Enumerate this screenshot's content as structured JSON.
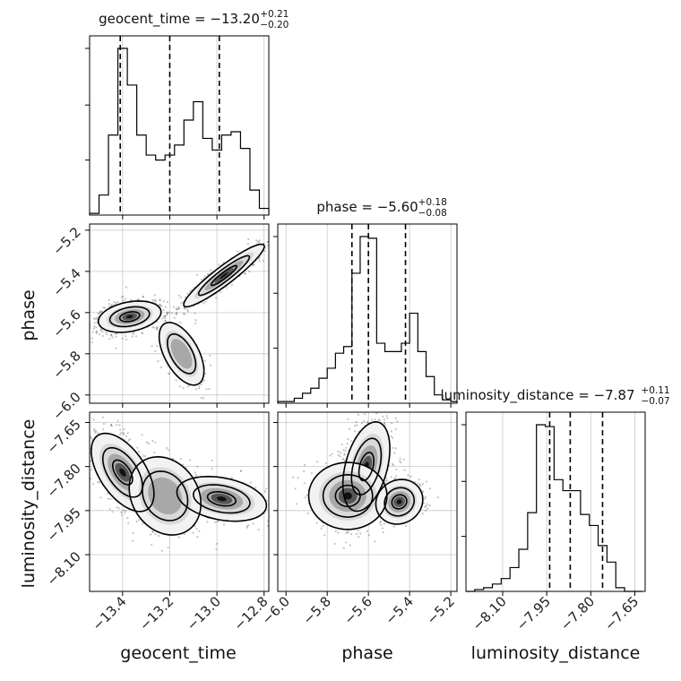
{
  "chart_data": {
    "type": "corner",
    "parameters": [
      "geocent_time",
      "phase",
      "luminosity_distance"
    ],
    "ranges": {
      "geocent_time": [
        -13.54,
        -12.78
      ],
      "phase": [
        -6.04,
        -5.17
      ],
      "luminosity_distance": [
        -8.225,
        -7.615
      ]
    },
    "axis_ticks": {
      "geocent_time": [
        {
          "value": -13.4,
          "label": "−13.4"
        },
        {
          "value": -13.2,
          "label": "−13.2"
        },
        {
          "value": -13.0,
          "label": "−13.0"
        },
        {
          "value": -12.8,
          "label": "−12.8"
        }
      ],
      "phase": [
        {
          "value": -6.0,
          "label": "−6.0"
        },
        {
          "value": -5.8,
          "label": "−5.8"
        },
        {
          "value": -5.6,
          "label": "−5.6"
        },
        {
          "value": -5.4,
          "label": "−5.4"
        },
        {
          "value": -5.2,
          "label": "−5.2"
        }
      ],
      "luminosity_distance": [
        {
          "value": -8.1,
          "label": "−8.10"
        },
        {
          "value": -7.95,
          "label": "−7.95"
        },
        {
          "value": -7.8,
          "label": "−7.80"
        },
        {
          "value": -7.65,
          "label": "−7.65"
        }
      ]
    },
    "diagonal_titles": [
      {
        "param": "geocent_time",
        "main": "geocent_time = −13.20",
        "plus": "+0.21",
        "minus": "−0.20"
      },
      {
        "param": "phase",
        "main": "phase = −5.60",
        "plus": "+0.18",
        "minus": "−0.08"
      },
      {
        "param": "luminosity_distance",
        "main": "luminosity_distance = −7.87",
        "plus": "+0.11",
        "minus": "−0.07"
      }
    ],
    "quantiles": {
      "geocent_time": [
        -13.41,
        -13.2,
        -12.99
      ],
      "phase": [
        -5.68,
        -5.6,
        -5.42
      ],
      "luminosity_distance": [
        -7.94,
        -7.87,
        -7.76
      ]
    },
    "histograms": {
      "geocent_time": {
        "edges": [
          -13.54,
          -13.5,
          -13.46,
          -13.42,
          -13.38,
          -13.34,
          -13.3,
          -13.26,
          -13.22,
          -13.18,
          -13.14,
          -13.1,
          -13.06,
          -13.02,
          -12.98,
          -12.94,
          -12.9,
          -12.86,
          -12.82,
          -12.78
        ],
        "counts": [
          0.01,
          0.12,
          0.48,
          1.0,
          0.78,
          0.48,
          0.36,
          0.33,
          0.36,
          0.42,
          0.57,
          0.68,
          0.46,
          0.39,
          0.48,
          0.5,
          0.4,
          0.15,
          0.04
        ]
      },
      "phase": {
        "edges": [
          -6.04,
          -6.0,
          -5.96,
          -5.92,
          -5.88,
          -5.84,
          -5.8,
          -5.76,
          -5.72,
          -5.68,
          -5.64,
          -5.6,
          -5.56,
          -5.52,
          -5.48,
          -5.44,
          -5.4,
          -5.36,
          -5.32,
          -5.28,
          -5.24,
          -5.2,
          -5.17
        ],
        "counts": [
          0.01,
          0.01,
          0.03,
          0.06,
          0.09,
          0.15,
          0.21,
          0.3,
          0.34,
          0.78,
          1.0,
          0.99,
          0.36,
          0.31,
          0.31,
          0.36,
          0.54,
          0.31,
          0.16,
          0.05,
          0.02,
          0.01
        ]
      },
      "luminosity_distance": {
        "edges": [
          -8.225,
          -8.195,
          -8.165,
          -8.135,
          -8.105,
          -8.075,
          -8.045,
          -8.015,
          -7.985,
          -7.955,
          -7.925,
          -7.895,
          -7.865,
          -7.835,
          -7.805,
          -7.775,
          -7.745,
          -7.715,
          -7.685,
          -7.655,
          -7.625
        ],
        "counts": [
          0.0,
          0.01,
          0.02,
          0.04,
          0.07,
          0.13,
          0.23,
          0.43,
          0.91,
          0.9,
          0.61,
          0.55,
          0.55,
          0.42,
          0.36,
          0.25,
          0.16,
          0.02,
          0.0,
          0.0
        ]
      }
    },
    "pair_panels": [
      {
        "x": "geocent_time",
        "y": "phase",
        "modes": [
          {
            "cx": -13.37,
            "cy": -5.62,
            "sx": 0.07,
            "sy": 0.04,
            "rho": 0.3,
            "weight": 0.55
          },
          {
            "cx": -12.97,
            "cy": -5.42,
            "sx": 0.09,
            "sy": 0.08,
            "rho": 0.93,
            "weight": 0.4
          },
          {
            "cx": -13.15,
            "cy": -5.8,
            "sx": 0.05,
            "sy": 0.08,
            "rho": -0.55,
            "weight": 0.18
          }
        ]
      },
      {
        "x": "geocent_time",
        "y": "luminosity_distance",
        "modes": [
          {
            "cx": -13.4,
            "cy": -7.82,
            "sx": 0.07,
            "sy": 0.07,
            "rho": -0.55,
            "weight": 0.55
          },
          {
            "cx": -12.98,
            "cy": -7.91,
            "sx": 0.1,
            "sy": 0.04,
            "rho": -0.3,
            "weight": 0.4
          },
          {
            "cx": -13.22,
            "cy": -7.9,
            "sx": 0.08,
            "sy": 0.07,
            "rho": -0.2,
            "weight": 0.25
          }
        ]
      },
      {
        "x": "phase",
        "y": "luminosity_distance",
        "modes": [
          {
            "cx": -5.61,
            "cy": -7.8,
            "sx": 0.06,
            "sy": 0.08,
            "rho": 0.4,
            "weight": 0.6
          },
          {
            "cx": -5.45,
            "cy": -7.92,
            "sx": 0.06,
            "sy": 0.04,
            "rho": 0.1,
            "weight": 0.35
          },
          {
            "cx": -5.7,
            "cy": -7.9,
            "sx": 0.1,
            "sy": 0.06,
            "rho": 0.0,
            "weight": 0.3
          }
        ]
      }
    ],
    "grid": true
  }
}
